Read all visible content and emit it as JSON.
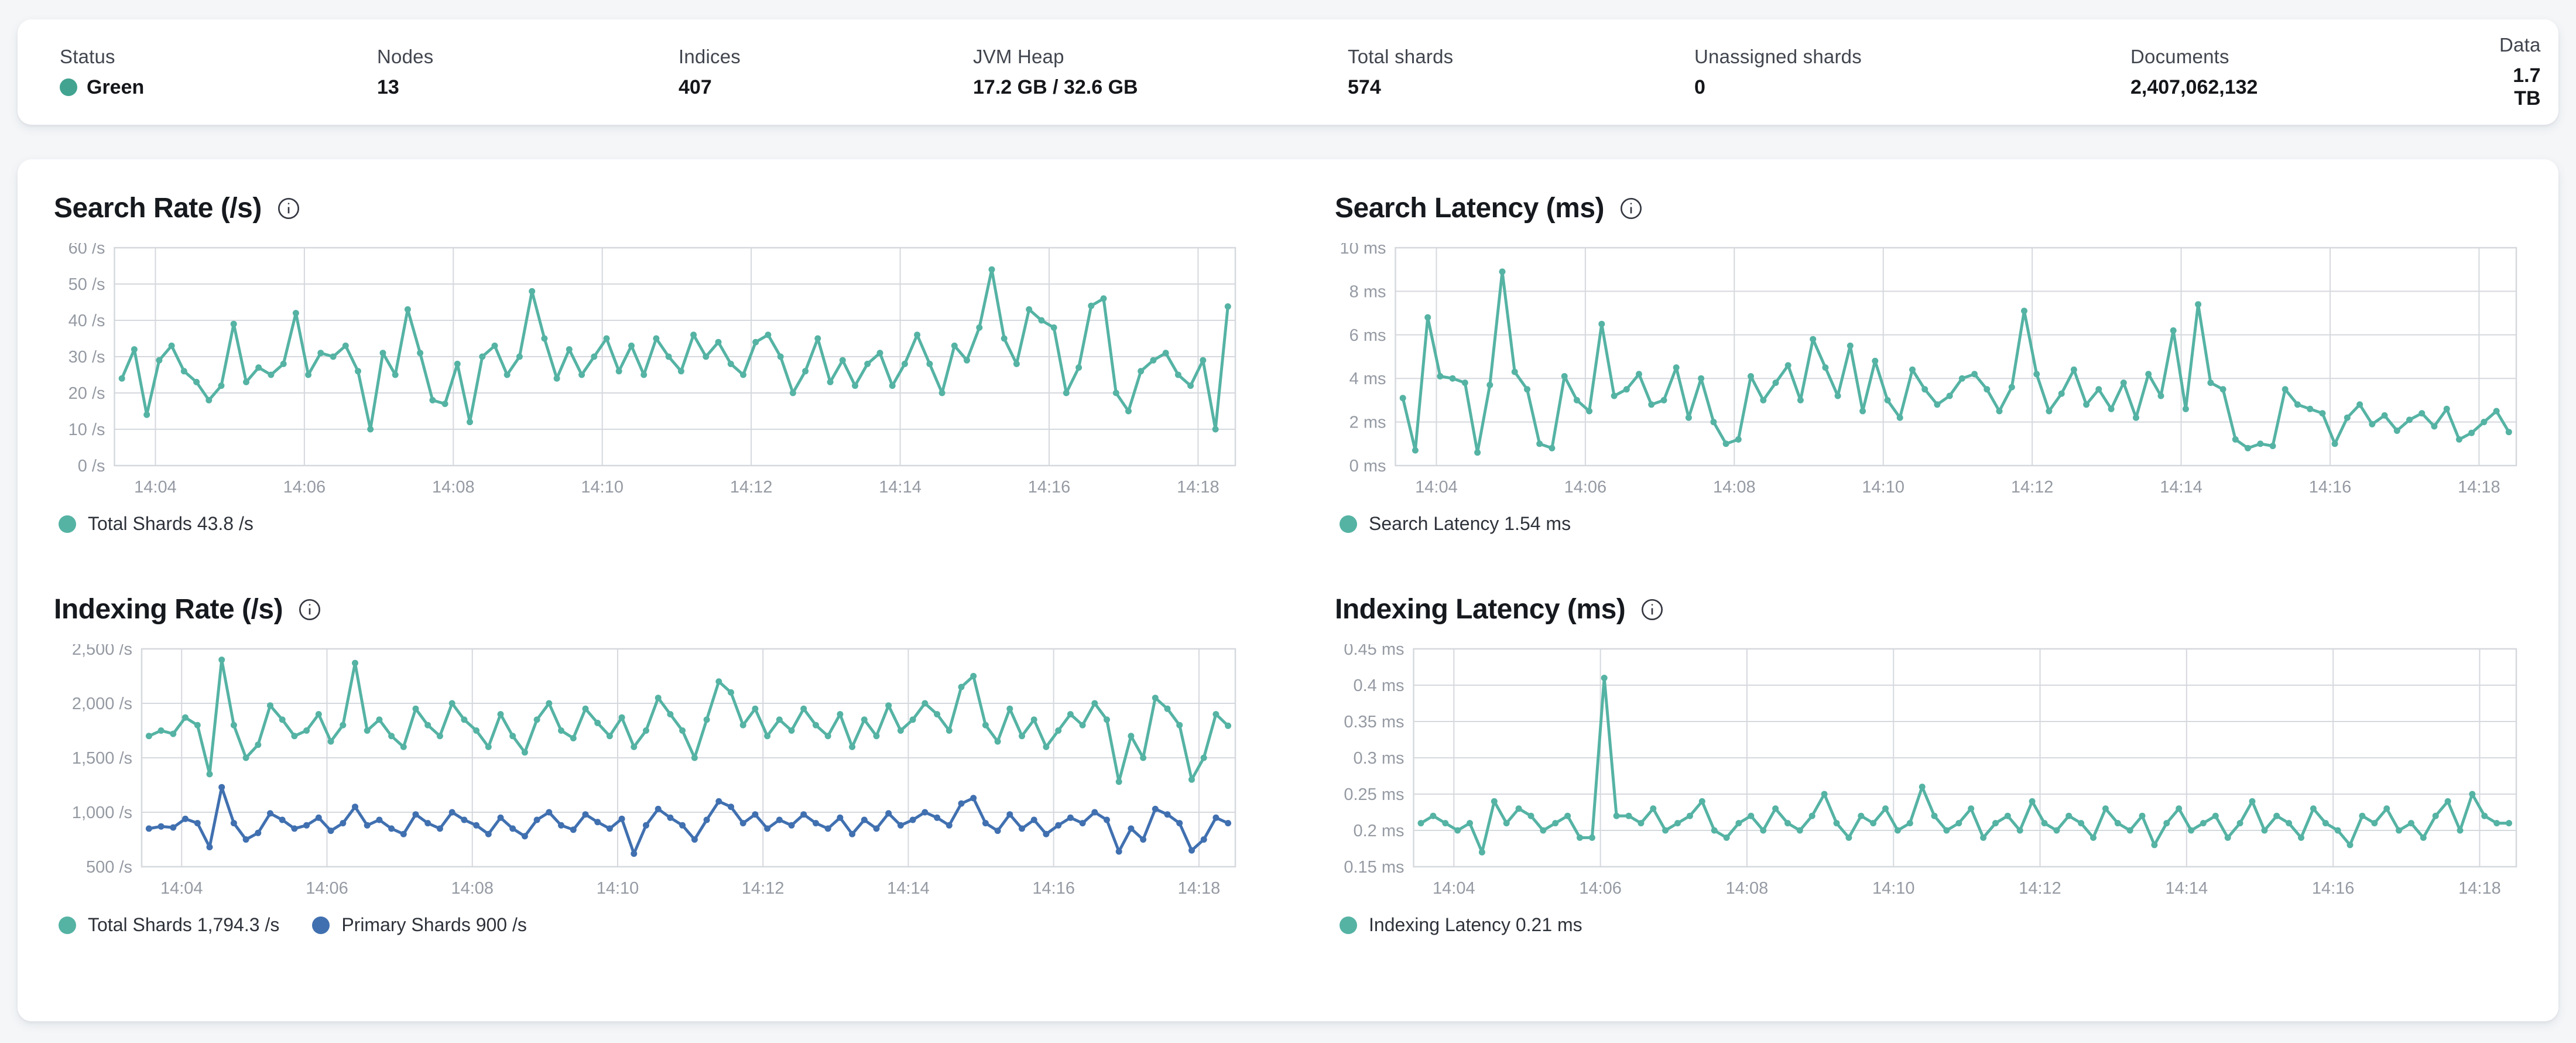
{
  "status_bar": {
    "items": [
      {
        "label": "Status",
        "value": "Green",
        "dot_color": "#41a390"
      },
      {
        "label": "Nodes",
        "value": "13"
      },
      {
        "label": "Indices",
        "value": "407"
      },
      {
        "label": "JVM Heap",
        "value": "17.2 GB / 32.6 GB"
      },
      {
        "label": "Total shards",
        "value": "574"
      },
      {
        "label": "Unassigned shards",
        "value": "0"
      },
      {
        "label": "Documents",
        "value": "2,407,062,132"
      },
      {
        "label": "Data",
        "value": "1.7 TB"
      }
    ]
  },
  "colors": {
    "teal_line": "#55b3a4",
    "blue_line": "#4070b0",
    "grid": "#d5d8dd",
    "axis_text": "#959aa3",
    "page_bg": "#f4f6f8",
    "card_bg": "#ffffff"
  },
  "chart_data": [
    {
      "type": "line",
      "title": "Search Rate (/s)",
      "ylim": [
        0,
        60
      ],
      "ytick_values": [
        0,
        10,
        20,
        30,
        40,
        50,
        60
      ],
      "ytick_labels": [
        "0 /s",
        "10 /s",
        "20 /s",
        "30 /s",
        "40 /s",
        "50 /s",
        "60 /s"
      ],
      "x_domain": [
        3.45,
        18.5
      ],
      "data_x_range": [
        3.55,
        18.4
      ],
      "xtick_minutes": [
        4,
        6,
        8,
        10,
        12,
        14,
        16,
        18
      ],
      "xtick_labels": [
        "14:04",
        "14:06",
        "14:08",
        "14:10",
        "14:12",
        "14:14",
        "14:16",
        "14:18"
      ],
      "grid": true,
      "legend_position": "bottom",
      "series": [
        {
          "name": "Total Shards",
          "legend_label": "Total Shards 43.8 /s",
          "current_value": "43.8 /s",
          "color": "#55b3a4",
          "values": [
            24,
            32,
            14,
            29,
            33,
            26,
            23,
            18,
            22,
            39,
            23,
            27,
            25,
            28,
            42,
            25,
            31,
            30,
            33,
            26,
            10,
            31,
            25,
            43,
            31,
            18,
            17,
            28,
            12,
            30,
            33,
            25,
            30,
            48,
            35,
            24,
            32,
            25,
            30,
            35,
            26,
            33,
            25,
            35,
            30,
            26,
            36,
            30,
            34,
            28,
            25,
            34,
            36,
            30,
            20,
            26,
            35,
            23,
            29,
            22,
            28,
            31,
            22,
            28,
            36,
            28,
            20,
            33,
            29,
            38,
            54,
            35,
            28,
            43,
            40,
            38,
            20,
            27,
            44,
            46,
            20,
            15,
            26,
            29,
            31,
            25,
            22,
            29,
            10,
            43.8
          ]
        }
      ]
    },
    {
      "type": "line",
      "title": "Search Latency (ms)",
      "ylim": [
        0,
        10
      ],
      "ytick_values": [
        0,
        2,
        4,
        6,
        8,
        10
      ],
      "ytick_labels": [
        "0 ms",
        "2 ms",
        "4 ms",
        "6 ms",
        "8 ms",
        "10 ms"
      ],
      "x_domain": [
        3.45,
        18.5
      ],
      "data_x_range": [
        3.55,
        18.4
      ],
      "xtick_minutes": [
        4,
        6,
        8,
        10,
        12,
        14,
        16,
        18
      ],
      "xtick_labels": [
        "14:04",
        "14:06",
        "14:08",
        "14:10",
        "14:12",
        "14:14",
        "14:16",
        "14:18"
      ],
      "grid": true,
      "legend_position": "bottom",
      "series": [
        {
          "name": "Search Latency",
          "legend_label": "Search Latency 1.54 ms",
          "current_value": "1.54 ms",
          "color": "#55b3a4",
          "values": [
            3.1,
            0.7,
            6.8,
            4.1,
            4.0,
            3.8,
            0.6,
            3.7,
            8.9,
            4.3,
            3.5,
            1.0,
            0.8,
            4.1,
            3.0,
            2.5,
            6.5,
            3.2,
            3.5,
            4.2,
            2.8,
            3.0,
            4.5,
            2.2,
            4.0,
            2.0,
            1.0,
            1.2,
            4.1,
            3.0,
            3.8,
            4.6,
            3.0,
            5.8,
            4.5,
            3.2,
            5.5,
            2.5,
            4.8,
            3.0,
            2.2,
            4.4,
            3.5,
            2.8,
            3.2,
            4.0,
            4.2,
            3.5,
            2.5,
            3.6,
            7.1,
            4.2,
            2.5,
            3.3,
            4.4,
            2.8,
            3.5,
            2.6,
            3.8,
            2.2,
            4.2,
            3.2,
            6.2,
            2.6,
            7.4,
            3.8,
            3.5,
            1.2,
            0.8,
            1.0,
            0.9,
            3.5,
            2.8,
            2.6,
            2.4,
            1.0,
            2.2,
            2.8,
            1.9,
            2.3,
            1.6,
            2.1,
            2.4,
            1.8,
            2.6,
            1.2,
            1.5,
            2.0,
            2.5,
            1.54
          ]
        }
      ]
    },
    {
      "type": "line",
      "title": "Indexing Rate (/s)",
      "ylim": [
        500,
        2500
      ],
      "ytick_values": [
        500,
        1000,
        1500,
        2000,
        2500
      ],
      "ytick_labels": [
        "500 /s",
        "1,000 /s",
        "1,500 /s",
        "2,000 /s",
        "2,500 /s"
      ],
      "x_domain": [
        3.45,
        18.5
      ],
      "data_x_range": [
        3.55,
        18.4
      ],
      "xtick_minutes": [
        4,
        6,
        8,
        10,
        12,
        14,
        16,
        18
      ],
      "xtick_labels": [
        "14:04",
        "14:06",
        "14:08",
        "14:10",
        "14:12",
        "14:14",
        "14:16",
        "14:18"
      ],
      "grid": true,
      "legend_position": "bottom",
      "series": [
        {
          "name": "Total Shards",
          "legend_label": "Total Shards 1,794.3 /s",
          "current_value": "1,794.3 /s",
          "color": "#55b3a4",
          "values": [
            1700,
            1750,
            1720,
            1870,
            1800,
            1350,
            2400,
            1800,
            1500,
            1620,
            1980,
            1850,
            1700,
            1750,
            1900,
            1650,
            1800,
            2370,
            1750,
            1850,
            1700,
            1600,
            1950,
            1800,
            1700,
            2000,
            1850,
            1750,
            1600,
            1900,
            1700,
            1550,
            1850,
            2000,
            1750,
            1680,
            1950,
            1820,
            1700,
            1870,
            1600,
            1750,
            2050,
            1900,
            1750,
            1500,
            1850,
            2200,
            2100,
            1800,
            1950,
            1700,
            1850,
            1750,
            1950,
            1800,
            1700,
            1900,
            1600,
            1850,
            1700,
            1980,
            1750,
            1850,
            2000,
            1900,
            1750,
            2150,
            2250,
            1800,
            1650,
            1950,
            1700,
            1850,
            1600,
            1750,
            1900,
            1800,
            2000,
            1850,
            1280,
            1700,
            1500,
            2050,
            1950,
            1800,
            1300,
            1500,
            1900,
            1794.3
          ]
        },
        {
          "name": "Primary Shards",
          "legend_label": "Primary Shards 900 /s",
          "current_value": "900 /s",
          "color": "#4070b0",
          "values": [
            850,
            870,
            860,
            940,
            900,
            680,
            1230,
            900,
            750,
            810,
            990,
            930,
            850,
            880,
            950,
            830,
            900,
            1050,
            880,
            930,
            850,
            800,
            980,
            900,
            850,
            1000,
            930,
            880,
            800,
            950,
            850,
            780,
            930,
            1000,
            880,
            840,
            980,
            910,
            850,
            940,
            620,
            880,
            1030,
            950,
            880,
            750,
            930,
            1100,
            1050,
            900,
            980,
            850,
            930,
            880,
            980,
            900,
            850,
            950,
            800,
            930,
            850,
            990,
            880,
            930,
            1000,
            950,
            880,
            1080,
            1130,
            900,
            830,
            980,
            850,
            930,
            800,
            880,
            950,
            900,
            1000,
            930,
            640,
            850,
            750,
            1030,
            980,
            900,
            650,
            750,
            950,
            900
          ]
        }
      ]
    },
    {
      "type": "line",
      "title": "Indexing Latency (ms)",
      "ylim": [
        0.15,
        0.45
      ],
      "ytick_values": [
        0.15,
        0.2,
        0.25,
        0.3,
        0.35,
        0.4,
        0.45
      ],
      "ytick_labels": [
        "0.15 ms",
        "0.2 ms",
        "0.25 ms",
        "0.3 ms",
        "0.35 ms",
        "0.4 ms",
        "0.45 ms"
      ],
      "x_domain": [
        3.45,
        18.5
      ],
      "data_x_range": [
        3.55,
        18.4
      ],
      "xtick_minutes": [
        4,
        6,
        8,
        10,
        12,
        14,
        16,
        18
      ],
      "xtick_labels": [
        "14:04",
        "14:06",
        "14:08",
        "14:10",
        "14:12",
        "14:14",
        "14:16",
        "14:18"
      ],
      "grid": true,
      "legend_position": "bottom",
      "series": [
        {
          "name": "Indexing Latency",
          "legend_label": "Indexing Latency 0.21 ms",
          "current_value": "0.21 ms",
          "color": "#55b3a4",
          "values": [
            0.21,
            0.22,
            0.21,
            0.2,
            0.21,
            0.17,
            0.24,
            0.21,
            0.23,
            0.22,
            0.2,
            0.21,
            0.22,
            0.19,
            0.19,
            0.41,
            0.22,
            0.22,
            0.21,
            0.23,
            0.2,
            0.21,
            0.22,
            0.24,
            0.2,
            0.19,
            0.21,
            0.22,
            0.2,
            0.23,
            0.21,
            0.2,
            0.22,
            0.25,
            0.21,
            0.19,
            0.22,
            0.21,
            0.23,
            0.2,
            0.21,
            0.26,
            0.22,
            0.2,
            0.21,
            0.23,
            0.19,
            0.21,
            0.22,
            0.2,
            0.24,
            0.21,
            0.2,
            0.22,
            0.21,
            0.19,
            0.23,
            0.21,
            0.2,
            0.22,
            0.18,
            0.21,
            0.23,
            0.2,
            0.21,
            0.22,
            0.19,
            0.21,
            0.24,
            0.2,
            0.22,
            0.21,
            0.19,
            0.23,
            0.21,
            0.2,
            0.18,
            0.22,
            0.21,
            0.23,
            0.2,
            0.21,
            0.19,
            0.22,
            0.24,
            0.2,
            0.25,
            0.22,
            0.21,
            0.21
          ]
        }
      ]
    }
  ]
}
